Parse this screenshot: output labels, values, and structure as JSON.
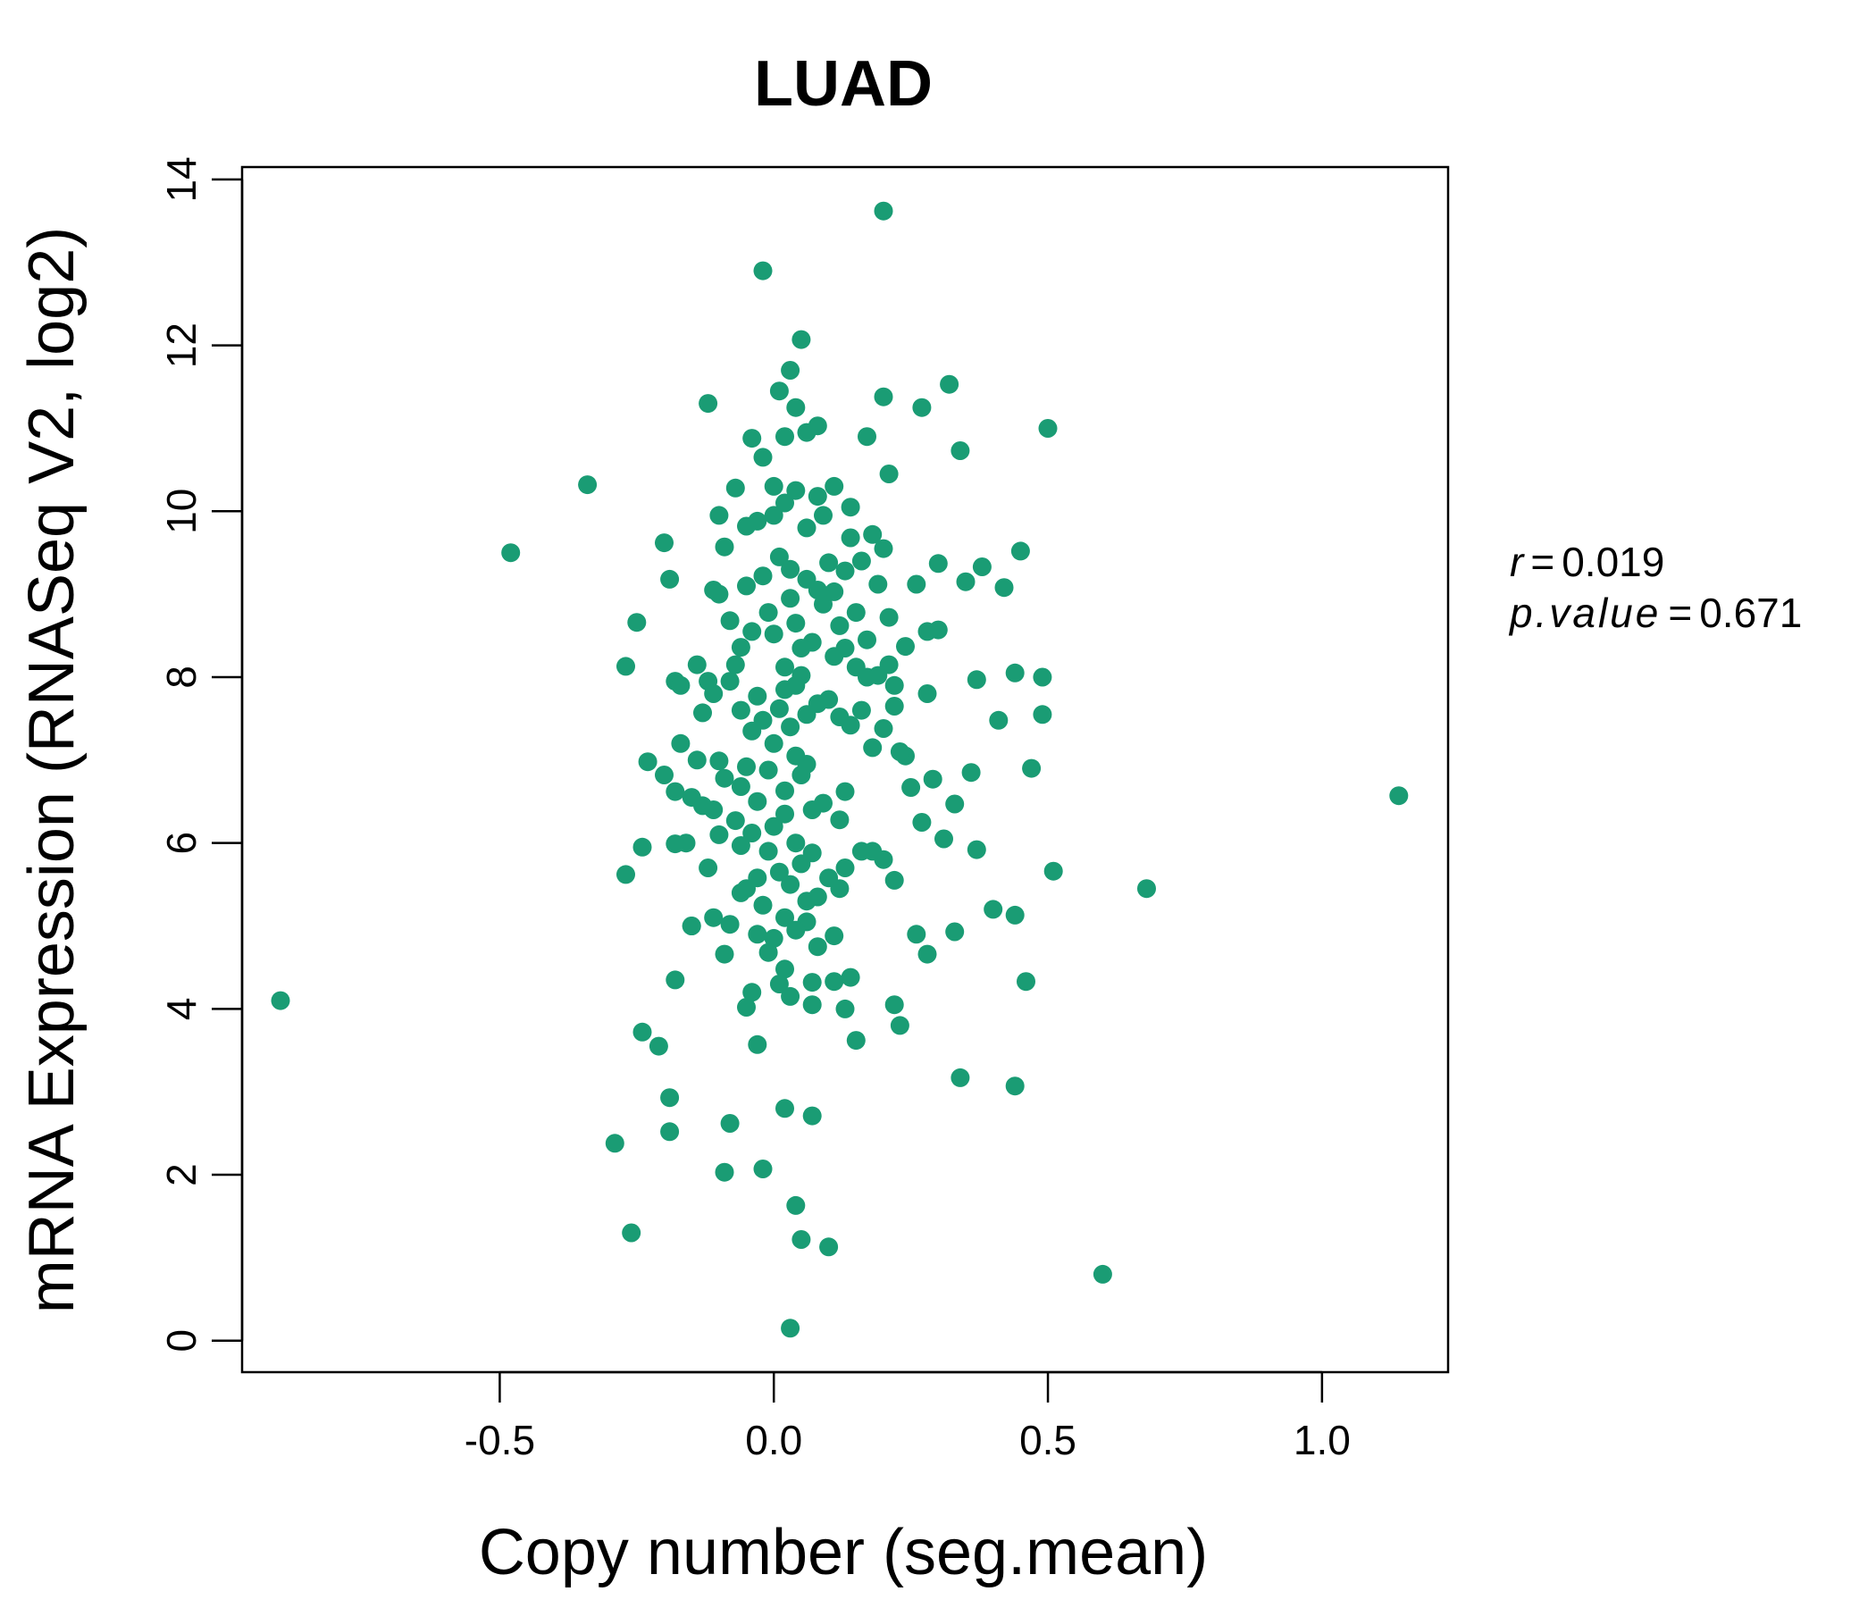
{
  "chart_data": {
    "type": "scatter",
    "title": "LUAD",
    "xlabel": "Copy number (seg.mean)",
    "ylabel": "mRNA Expression (RNASeq V2, log2)",
    "xlim": [
      -0.97,
      1.23
    ],
    "ylim": [
      -0.38,
      14.15
    ],
    "x_ticks": [
      -0.5,
      0.0,
      0.5,
      1.0
    ],
    "x_tick_labels": [
      "-0.5",
      "0.0",
      "0.5",
      "1.0"
    ],
    "y_ticks": [
      0,
      2,
      4,
      6,
      8,
      10,
      12,
      14
    ],
    "y_tick_labels": [
      "0",
      "2",
      "4",
      "6",
      "8",
      "10",
      "12",
      "14"
    ],
    "grid": false,
    "point_color": "#1a9c74",
    "title_color": "#1a9c74",
    "stats": {
      "r_label": "r",
      "r_value": "0.019",
      "p_label": "p.value",
      "p_value": "0.671"
    },
    "points": [
      [
        -0.9,
        4.1
      ],
      [
        -0.48,
        9.5
      ],
      [
        -0.34,
        10.32
      ],
      [
        -0.29,
        2.38
      ],
      [
        -0.27,
        5.62
      ],
      [
        -0.26,
        1.3
      ],
      [
        -0.24,
        5.95
      ],
      [
        -0.24,
        3.72
      ],
      [
        -0.21,
        3.55
      ],
      [
        -0.19,
        2.93
      ],
      [
        -0.19,
        2.52
      ],
      [
        -0.18,
        6.62
      ],
      [
        -0.18,
        4.35
      ],
      [
        -0.17,
        7.2
      ],
      [
        -0.16,
        6.0
      ],
      [
        -0.15,
        5.0
      ],
      [
        -0.14,
        7.0
      ],
      [
        -0.12,
        11.3
      ],
      [
        -0.11,
        5.1
      ],
      [
        -0.1,
        9.0
      ],
      [
        -0.09,
        4.66
      ],
      [
        -0.09,
        2.03
      ],
      [
        -0.08,
        2.62
      ],
      [
        -0.06,
        5.4
      ],
      [
        -0.04,
        4.2
      ],
      [
        -0.03,
        4.9
      ],
      [
        -0.03,
        3.57
      ],
      [
        -0.02,
        12.9
      ],
      [
        -0.02,
        2.07
      ],
      [
        -0.01,
        4.68
      ],
      [
        0.02,
        4.48
      ],
      [
        0.02,
        2.8
      ],
      [
        0.03,
        0.15
      ],
      [
        0.04,
        1.63
      ],
      [
        0.05,
        12.07
      ],
      [
        0.05,
        1.22
      ],
      [
        0.07,
        4.32
      ],
      [
        0.07,
        2.71
      ],
      [
        0.1,
        1.13
      ],
      [
        0.11,
        4.33
      ],
      [
        0.14,
        4.38
      ],
      [
        0.15,
        3.62
      ],
      [
        0.2,
        13.62
      ],
      [
        0.2,
        11.38
      ],
      [
        0.21,
        10.45
      ],
      [
        0.22,
        4.05
      ],
      [
        0.23,
        3.8
      ],
      [
        0.27,
        11.25
      ],
      [
        0.28,
        4.66
      ],
      [
        0.32,
        11.53
      ],
      [
        0.34,
        10.73
      ],
      [
        0.34,
        3.17
      ],
      [
        0.44,
        3.07
      ],
      [
        0.45,
        9.52
      ],
      [
        0.46,
        4.33
      ],
      [
        0.47,
        6.9
      ],
      [
        0.49,
        8.0
      ],
      [
        0.5,
        11.0
      ],
      [
        0.51,
        5.66
      ],
      [
        0.6,
        0.8
      ],
      [
        0.68,
        5.45
      ],
      [
        1.14,
        6.57
      ],
      [
        -0.25,
        8.66
      ],
      [
        -0.2,
        9.62
      ],
      [
        -0.19,
        9.18
      ],
      [
        -0.18,
        7.95
      ],
      [
        -0.17,
        7.9
      ],
      [
        -0.13,
        7.57
      ],
      [
        -0.11,
        7.8
      ],
      [
        -0.1,
        9.95
      ],
      [
        -0.09,
        9.57
      ],
      [
        -0.08,
        8.68
      ],
      [
        -0.07,
        10.28
      ],
      [
        -0.05,
        9.82
      ],
      [
        -0.04,
        10.88
      ],
      [
        -0.03,
        9.88
      ],
      [
        -0.02,
        10.65
      ],
      [
        0.0,
        10.3
      ],
      [
        0.01,
        11.45
      ],
      [
        0.02,
        10.9
      ],
      [
        0.03,
        11.7
      ],
      [
        0.04,
        11.25
      ],
      [
        0.06,
        10.95
      ],
      [
        0.08,
        11.03
      ],
      [
        0.11,
        10.3
      ],
      [
        0.14,
        10.05
      ],
      [
        0.17,
        10.9
      ],
      [
        -0.27,
        8.13
      ],
      [
        -0.23,
        6.98
      ],
      [
        -0.2,
        6.82
      ],
      [
        -0.18,
        5.99
      ],
      [
        -0.15,
        5.0
      ],
      [
        -0.12,
        5.7
      ],
      [
        -0.11,
        6.4
      ],
      [
        -0.1,
        6.99
      ],
      [
        -0.08,
        5.02
      ],
      [
        -0.07,
        6.27
      ],
      [
        0.12,
        6.28
      ],
      [
        0.13,
        5.7
      ],
      [
        0.16,
        5.9
      ],
      [
        0.18,
        5.9
      ],
      [
        0.2,
        5.8
      ],
      [
        0.22,
        5.55
      ],
      [
        0.24,
        7.05
      ],
      [
        0.25,
        6.67
      ],
      [
        0.26,
        4.9
      ],
      [
        0.27,
        6.25
      ],
      [
        0.28,
        7.8
      ],
      [
        0.29,
        6.77
      ],
      [
        0.3,
        8.57
      ],
      [
        0.31,
        6.05
      ],
      [
        0.33,
        4.93
      ],
      [
        0.33,
        6.47
      ],
      [
        0.35,
        9.15
      ],
      [
        0.36,
        6.85
      ],
      [
        0.37,
        5.92
      ],
      [
        0.37,
        7.97
      ],
      [
        0.38,
        9.33
      ],
      [
        0.4,
        5.2
      ],
      [
        0.41,
        7.48
      ],
      [
        0.42,
        9.08
      ],
      [
        0.44,
        8.05
      ],
      [
        0.44,
        5.13
      ],
      [
        0.49,
        7.55
      ],
      [
        0.3,
        9.37
      ],
      [
        0.28,
        8.55
      ],
      [
        0.26,
        9.12
      ],
      [
        0.24,
        8.37
      ],
      [
        0.22,
        7.9
      ],
      [
        0.21,
        8.72
      ],
      [
        0.2,
        9.55
      ],
      [
        0.19,
        9.12
      ],
      [
        0.18,
        9.72
      ],
      [
        0.17,
        8.0
      ],
      [
        0.16,
        9.4
      ],
      [
        0.15,
        8.78
      ],
      [
        0.14,
        9.68
      ],
      [
        0.13,
        8.35
      ],
      [
        0.12,
        7.52
      ],
      [
        0.11,
        9.03
      ],
      [
        0.1,
        7.73
      ],
      [
        0.09,
        9.95
      ],
      [
        -0.06,
        8.36
      ],
      [
        -0.05,
        9.1
      ],
      [
        -0.04,
        8.55
      ],
      [
        -0.03,
        7.77
      ],
      [
        -0.02,
        9.22
      ],
      [
        -0.01,
        8.78
      ],
      [
        0.0,
        8.52
      ],
      [
        0.01,
        9.45
      ],
      [
        0.02,
        8.12
      ],
      [
        0.03,
        9.3
      ],
      [
        0.04,
        8.65
      ],
      [
        0.05,
        8.02
      ],
      [
        0.06,
        9.18
      ],
      [
        0.07,
        8.42
      ],
      [
        0.08,
        9.05
      ],
      [
        -0.06,
        7.6
      ],
      [
        -0.05,
        6.92
      ],
      [
        -0.04,
        7.35
      ],
      [
        -0.03,
        6.5
      ],
      [
        -0.02,
        7.48
      ],
      [
        -0.01,
        6.88
      ],
      [
        0.0,
        7.2
      ],
      [
        0.01,
        7.62
      ],
      [
        0.02,
        6.63
      ],
      [
        0.03,
        7.4
      ],
      [
        0.04,
        7.9
      ],
      [
        0.05,
        6.82
      ],
      [
        0.06,
        7.55
      ],
      [
        0.07,
        6.4
      ],
      [
        0.08,
        7.68
      ],
      [
        -0.06,
        5.97
      ],
      [
        -0.05,
        5.45
      ],
      [
        -0.04,
        6.12
      ],
      [
        -0.03,
        5.58
      ],
      [
        -0.02,
        5.25
      ],
      [
        -0.01,
        5.9
      ],
      [
        0.0,
        6.2
      ],
      [
        0.01,
        5.65
      ],
      [
        0.02,
        6.35
      ],
      [
        0.03,
        5.5
      ],
      [
        0.04,
        6.0
      ],
      [
        0.05,
        5.75
      ],
      [
        0.06,
        5.05
      ],
      [
        0.07,
        5.88
      ],
      [
        0.08,
        5.35
      ],
      [
        0.09,
        6.48
      ],
      [
        0.1,
        5.58
      ],
      [
        0.11,
        4.88
      ],
      [
        0.12,
        5.45
      ],
      [
        0.13,
        6.62
      ],
      [
        -0.1,
        6.1
      ],
      [
        -0.09,
        6.78
      ],
      [
        -0.08,
        7.95
      ],
      [
        -0.07,
        8.15
      ],
      [
        -0.06,
        6.68
      ],
      [
        0.09,
        8.88
      ],
      [
        0.1,
        9.38
      ],
      [
        0.11,
        8.25
      ],
      [
        0.12,
        8.62
      ],
      [
        0.13,
        9.28
      ],
      [
        0.14,
        7.42
      ],
      [
        0.15,
        8.12
      ],
      [
        0.16,
        7.6
      ],
      [
        0.17,
        8.45
      ],
      [
        0.18,
        7.15
      ],
      [
        0.19,
        8.02
      ],
      [
        0.2,
        7.38
      ],
      [
        0.21,
        8.15
      ],
      [
        0.22,
        7.65
      ],
      [
        0.23,
        7.1
      ],
      [
        -0.15,
        6.55
      ],
      [
        -0.14,
        8.15
      ],
      [
        -0.13,
        6.45
      ],
      [
        -0.12,
        7.95
      ],
      [
        -0.11,
        9.05
      ],
      [
        0.0,
        9.95
      ],
      [
        0.02,
        10.1
      ],
      [
        0.04,
        10.25
      ],
      [
        0.06,
        9.8
      ],
      [
        0.08,
        10.18
      ],
      [
        0.0,
        4.85
      ],
      [
        0.02,
        5.1
      ],
      [
        0.04,
        4.95
      ],
      [
        0.06,
        5.3
      ],
      [
        0.08,
        4.75
      ],
      [
        -0.05,
        4.02
      ],
      [
        0.01,
        4.3
      ],
      [
        0.03,
        4.15
      ],
      [
        0.07,
        4.05
      ],
      [
        0.13,
        4.0
      ],
      [
        0.05,
        8.35
      ],
      [
        0.04,
        7.05
      ],
      [
        0.03,
        8.95
      ],
      [
        0.06,
        6.95
      ],
      [
        0.02,
        7.85
      ]
    ]
  }
}
